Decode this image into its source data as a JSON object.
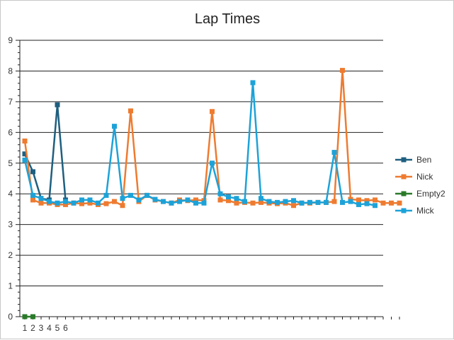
{
  "chart_data": {
    "type": "line",
    "title": "Lap Times",
    "xlabel": "",
    "ylabel": "",
    "ylim": [
      0,
      9
    ],
    "yticks": [
      0,
      1,
      2,
      3,
      4,
      5,
      6,
      7,
      8,
      9
    ],
    "xticks": [
      1,
      2,
      3,
      4,
      5,
      6
    ],
    "xlim": [
      1,
      47
    ],
    "grid": true,
    "legend_position": "right",
    "series": [
      {
        "name": "Ben",
        "color": "#1f5f7f",
        "x": [
          1,
          2,
          3,
          4,
          5,
          6
        ],
        "values": [
          5.3,
          4.72,
          3.85,
          3.8,
          6.9,
          3.8
        ]
      },
      {
        "name": "Nick",
        "color": "#ee7b30",
        "x": [
          1,
          2,
          3,
          4,
          5,
          6,
          7,
          8,
          9,
          10,
          11,
          12,
          13,
          14,
          15,
          16,
          17,
          18,
          19,
          20,
          21,
          22,
          23,
          24,
          25,
          26,
          27,
          28,
          29,
          30,
          31,
          32,
          33,
          34,
          35,
          36,
          37,
          38,
          39,
          40,
          41,
          42,
          43,
          44,
          45,
          46,
          47
        ],
        "values": [
          5.72,
          3.8,
          3.7,
          3.7,
          3.65,
          3.65,
          3.7,
          3.68,
          3.7,
          3.65,
          3.68,
          3.75,
          3.62,
          6.7,
          3.75,
          3.95,
          3.8,
          3.75,
          3.7,
          3.8,
          3.78,
          3.8,
          3.78,
          6.68,
          3.8,
          3.78,
          3.7,
          3.72,
          3.7,
          3.72,
          3.7,
          3.68,
          3.7,
          3.62,
          3.7,
          3.7,
          3.72,
          3.72,
          3.75,
          8.02,
          3.82,
          3.8,
          3.78,
          3.8,
          3.7,
          3.7,
          3.7
        ]
      },
      {
        "name": "Empty2",
        "color": "#2a7a2a",
        "x": [
          1,
          2
        ],
        "values": [
          0,
          0
        ]
      },
      {
        "name": "Mick",
        "color": "#1da2d8",
        "x": [
          1,
          2,
          3,
          4,
          5,
          6,
          7,
          8,
          9,
          10,
          11,
          12,
          13,
          14,
          15,
          16,
          17,
          18,
          19,
          20,
          21,
          22,
          23,
          24,
          25,
          26,
          27,
          28,
          29,
          30,
          31,
          32,
          33,
          34,
          35,
          36,
          37,
          38,
          39,
          40,
          41,
          42,
          43,
          44
        ],
        "values": [
          5.1,
          3.95,
          3.85,
          3.75,
          3.7,
          3.75,
          3.7,
          3.8,
          3.8,
          3.7,
          3.95,
          6.2,
          3.85,
          3.95,
          3.8,
          3.95,
          3.82,
          3.75,
          3.7,
          3.75,
          3.8,
          3.7,
          3.7,
          5.0,
          4.0,
          3.9,
          3.85,
          3.75,
          7.62,
          3.85,
          3.75,
          3.72,
          3.75,
          3.78,
          3.7,
          3.72,
          3.72,
          3.72,
          5.35,
          3.72,
          3.75,
          3.65,
          3.68,
          3.62
        ]
      }
    ]
  }
}
